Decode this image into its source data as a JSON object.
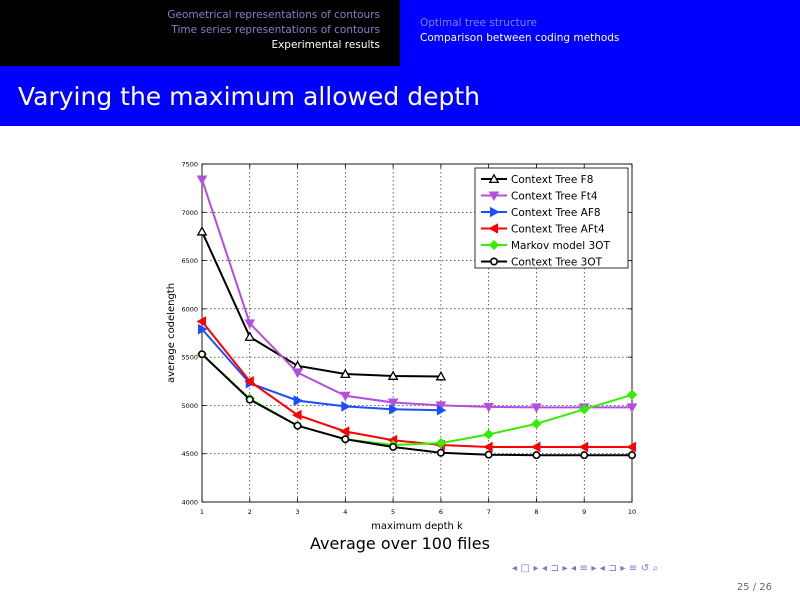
{
  "header": {
    "sections_left": [
      {
        "label": "Geometrical representations of contours",
        "active": false
      },
      {
        "label": "Time series representations of contours",
        "active": false
      },
      {
        "label": "Experimental results",
        "active": true
      }
    ],
    "sections_right": [
      {
        "label": "Optimal tree structure",
        "active": false
      },
      {
        "label": "Comparison between coding methods",
        "active": true
      }
    ],
    "colors": {
      "nav_left_bg": "#000000",
      "nav_right_bg": "#0000ff",
      "title_bg": "#0000ff"
    }
  },
  "slide": {
    "title": "Varying the maximum allowed depth",
    "caption": "Average over 100 files",
    "page_number": "25 / 26"
  },
  "navigation": {
    "icons": [
      "triangle-left-icon",
      "frame-icon",
      "triangle-right-icon",
      "triangle-left-icon",
      "subsection-icon",
      "triangle-right-icon",
      "triangle-left-icon",
      "section-icon",
      "triangle-right-icon",
      "triangle-left-icon",
      "subsection-icon",
      "triangle-right-icon",
      "align-icon",
      "undo-icon",
      "search-icon"
    ]
  },
  "chart_data": {
    "type": "line",
    "title": "",
    "xlabel": "maximum depth k",
    "ylabel": "average codelength",
    "xlim": [
      1,
      10
    ],
    "ylim": [
      4000,
      7500
    ],
    "xticks": [
      1,
      2,
      3,
      4,
      5,
      6,
      7,
      8,
      9,
      10
    ],
    "yticks": [
      4000,
      4500,
      5000,
      5500,
      6000,
      6500,
      7000,
      7500
    ],
    "grid": true,
    "legend_position": "top-right",
    "series": [
      {
        "name": "Context Tree F8",
        "color": "#000000",
        "marker": "triangle-up",
        "x": [
          1,
          2,
          3,
          4,
          5,
          6
        ],
        "values": [
          6800,
          5710,
          5410,
          5325,
          5305,
          5300
        ]
      },
      {
        "name": "Context Tree Ft4",
        "color": "#b44ee0",
        "marker": "triangle-down",
        "x": [
          1,
          2,
          3,
          4,
          5,
          6,
          7,
          8,
          9,
          10
        ],
        "values": [
          7340,
          5850,
          5340,
          5100,
          5030,
          5000,
          4985,
          4980,
          4980,
          4980
        ]
      },
      {
        "name": "Context Tree AF8",
        "color": "#1a4fff",
        "marker": "triangle-right",
        "x": [
          1,
          2,
          3,
          4,
          5,
          6
        ],
        "values": [
          5790,
          5230,
          5050,
          4990,
          4960,
          4950
        ]
      },
      {
        "name": "Context Tree AFt4",
        "color": "#ff0000",
        "marker": "triangle-left",
        "x": [
          1,
          2,
          3,
          4,
          5,
          6,
          7,
          8,
          9,
          10
        ],
        "values": [
          5870,
          5250,
          4900,
          4730,
          4640,
          4590,
          4570,
          4570,
          4570,
          4570
        ]
      },
      {
        "name": "Markov model 3OT",
        "color": "#33ee00",
        "marker": "diamond",
        "x": [
          1,
          2,
          3,
          4,
          5,
          6,
          7,
          8,
          9,
          10
        ],
        "values": [
          5530,
          5070,
          4790,
          4650,
          4590,
          4610,
          4700,
          4810,
          4960,
          5110
        ]
      },
      {
        "name": "Context Tree 3OT",
        "color": "#000000",
        "marker": "circle",
        "x": [
          1,
          2,
          3,
          4,
          5,
          6,
          7,
          8,
          9,
          10
        ],
        "values": [
          5530,
          5060,
          4790,
          4650,
          4570,
          4510,
          4490,
          4485,
          4485,
          4485
        ]
      }
    ]
  }
}
